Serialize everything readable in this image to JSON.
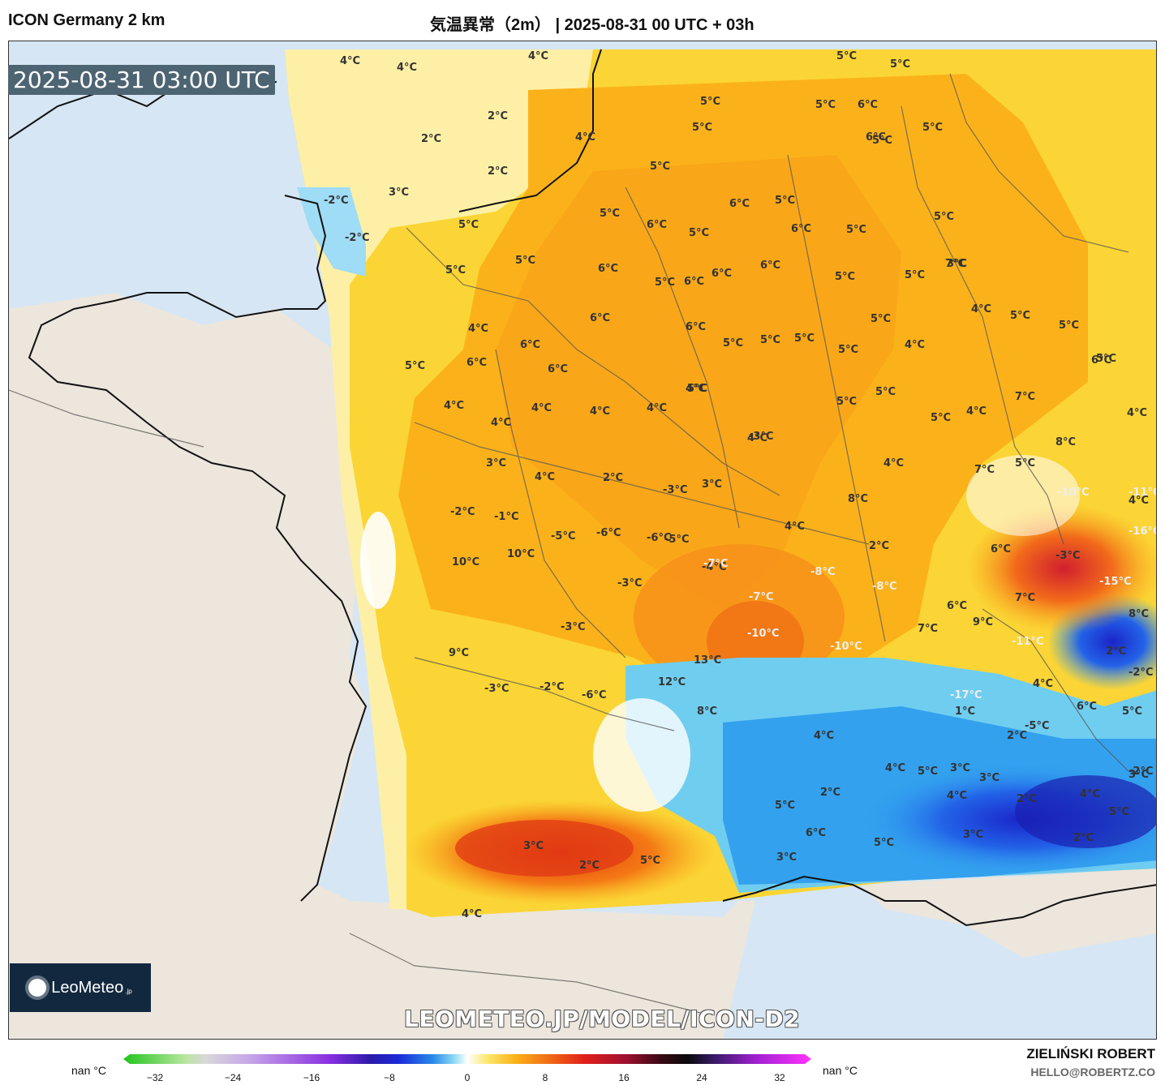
{
  "header": {
    "model": "ICON Germany 2 km",
    "title": "気温異常（2m） | 2025-08-31 00 UTC + 03h"
  },
  "timestamp": "2025-08-31 03:00 UTC",
  "watermark": "LEOMETEO.JP/MODEL/ICON-D2",
  "logo": {
    "name": "LeoMeteo",
    "suffix": ".jp"
  },
  "author": {
    "name": "ZIELIŃSKI ROBERT",
    "email": "HELLO@ROBERTZ.CO"
  },
  "colorbar": {
    "nan_left": "nan °C",
    "nan_right": "nan °C",
    "ticks": [
      "−32",
      "−24",
      "−16",
      "−8",
      "0",
      "8",
      "16",
      "24",
      "32"
    ]
  },
  "map_labels": [
    "4°C",
    "4°C",
    "4°C",
    "2°C",
    "2°C",
    "2°C",
    "4°C",
    "3°C",
    "-2°C",
    "-2°C",
    "5°C",
    "5°C",
    "5°C",
    "5°C",
    "6°C",
    "5°C",
    "5°C",
    "6°C",
    "6°C",
    "6°C",
    "5°C",
    "6°C",
    "5°C",
    "5°C",
    "4°C",
    "6°C",
    "6°C",
    "6°C",
    "5°C",
    "4°C",
    "4°C",
    "4°C",
    "4°C",
    "4°C",
    "5°C",
    "5°C",
    "5°C",
    "5°C",
    "5°C",
    "5°C",
    "6°C",
    "6°C",
    "6°C",
    "5°C",
    "6°C",
    "6°C",
    "5°C",
    "5°C",
    "5°C",
    "5°C",
    "5°C",
    "3°C",
    "4°C",
    "5°C",
    "5°C",
    "4°C",
    "5°C",
    "5°C",
    "5°C",
    "4°C",
    "5°C",
    "5°C",
    "5°C",
    "5°C",
    "6°C",
    "4°C",
    "4°C",
    "4°C",
    "7°C",
    "8°C",
    "7°C",
    "7°C",
    "8°C",
    "6°C",
    "5°C",
    "4°C",
    "4°C",
    "3°C",
    "4°C",
    "2°C",
    "-3°C",
    "3°C",
    "-3°C",
    "4°C",
    "2°C",
    "-2°C",
    "-1°C",
    "-5°C",
    "-6°C",
    "-6°C",
    "-4°C",
    "-7°C",
    "-8°C",
    "-8°C",
    "-10°C",
    "-10°C",
    "-7°C",
    "-5°C",
    "-3°C",
    "-3°C",
    "10°C",
    "10°C",
    "9°C",
    "-3°C",
    "-2°C",
    "-6°C",
    "12°C",
    "13°C",
    "8°C",
    "7°C",
    "6°C",
    "9°C",
    "7°C",
    "-17°C",
    "-11°C",
    "-3°C",
    "-15°C",
    "-16°C",
    "-11°C",
    "-10°C",
    "5°C",
    "8°C",
    "2°C",
    "-2°C",
    "4°C",
    "5°C",
    "2°C",
    "3°C",
    "6°C",
    "5°C",
    "4°C",
    "6°C",
    "5°C",
    "4°C",
    "1°C",
    "3°C",
    "2°C",
    "3°C",
    "4°C",
    "3°C",
    "2°C",
    "4°C",
    "5°C",
    "6°C",
    "5°C",
    "-5°C",
    "-2°C",
    "3°C",
    "2°C",
    "5°C",
    "4°C",
    "3°C",
    "2°C"
  ]
}
